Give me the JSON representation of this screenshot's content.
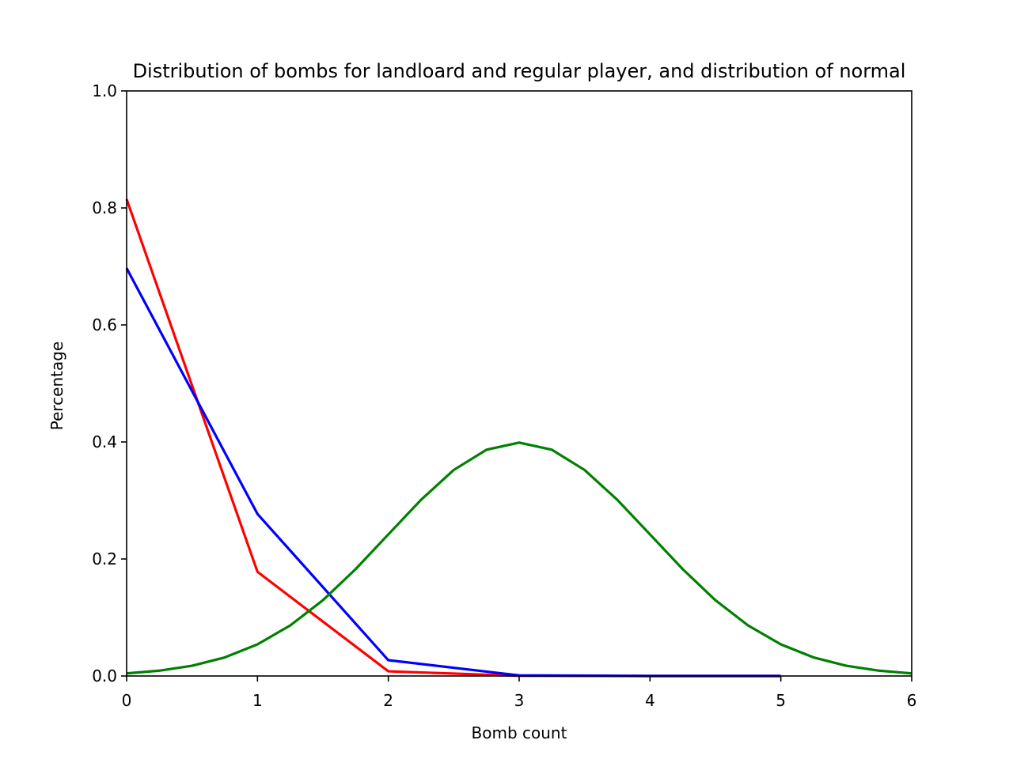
{
  "chart_data": {
    "type": "line",
    "title": "Distribution of bombs for landloard and regular player, and distribution of normal",
    "xlabel": "Bomb count",
    "ylabel": "Percentage",
    "xlim": [
      0,
      6
    ],
    "ylim": [
      0,
      1.0
    ],
    "x_ticks": [
      "0",
      "1",
      "2",
      "3",
      "4",
      "5",
      "6"
    ],
    "y_ticks": [
      "0.0",
      "0.2",
      "0.4",
      "0.6",
      "0.8",
      "1.0"
    ],
    "grid": false,
    "legend": "none",
    "series": [
      {
        "color": "#ff0000",
        "x": [
          0,
          1,
          2,
          3,
          4,
          5
        ],
        "y": [
          0.815,
          0.178,
          0.008,
          0.0003,
          0.0,
          0.0
        ]
      },
      {
        "color": "#0000ff",
        "x": [
          0,
          1,
          2,
          3,
          4,
          5
        ],
        "y": [
          0.697,
          0.277,
          0.027,
          0.001,
          0.0,
          0.0
        ]
      },
      {
        "color": "#008000",
        "x": [
          0,
          0.25,
          0.5,
          0.75,
          1,
          1.25,
          1.5,
          1.75,
          2,
          2.25,
          2.5,
          2.75,
          3,
          3.25,
          3.5,
          3.75,
          4,
          4.25,
          4.5,
          4.75,
          5,
          5.25,
          5.5,
          5.75,
          6
        ],
        "y": [
          0.0044,
          0.0091,
          0.0175,
          0.0317,
          0.054,
          0.0863,
          0.1295,
          0.1826,
          0.242,
          0.3011,
          0.3521,
          0.3867,
          0.3989,
          0.3867,
          0.3521,
          0.3011,
          0.242,
          0.1826,
          0.1295,
          0.0863,
          0.054,
          0.0317,
          0.0175,
          0.0091,
          0.0044
        ]
      }
    ]
  }
}
